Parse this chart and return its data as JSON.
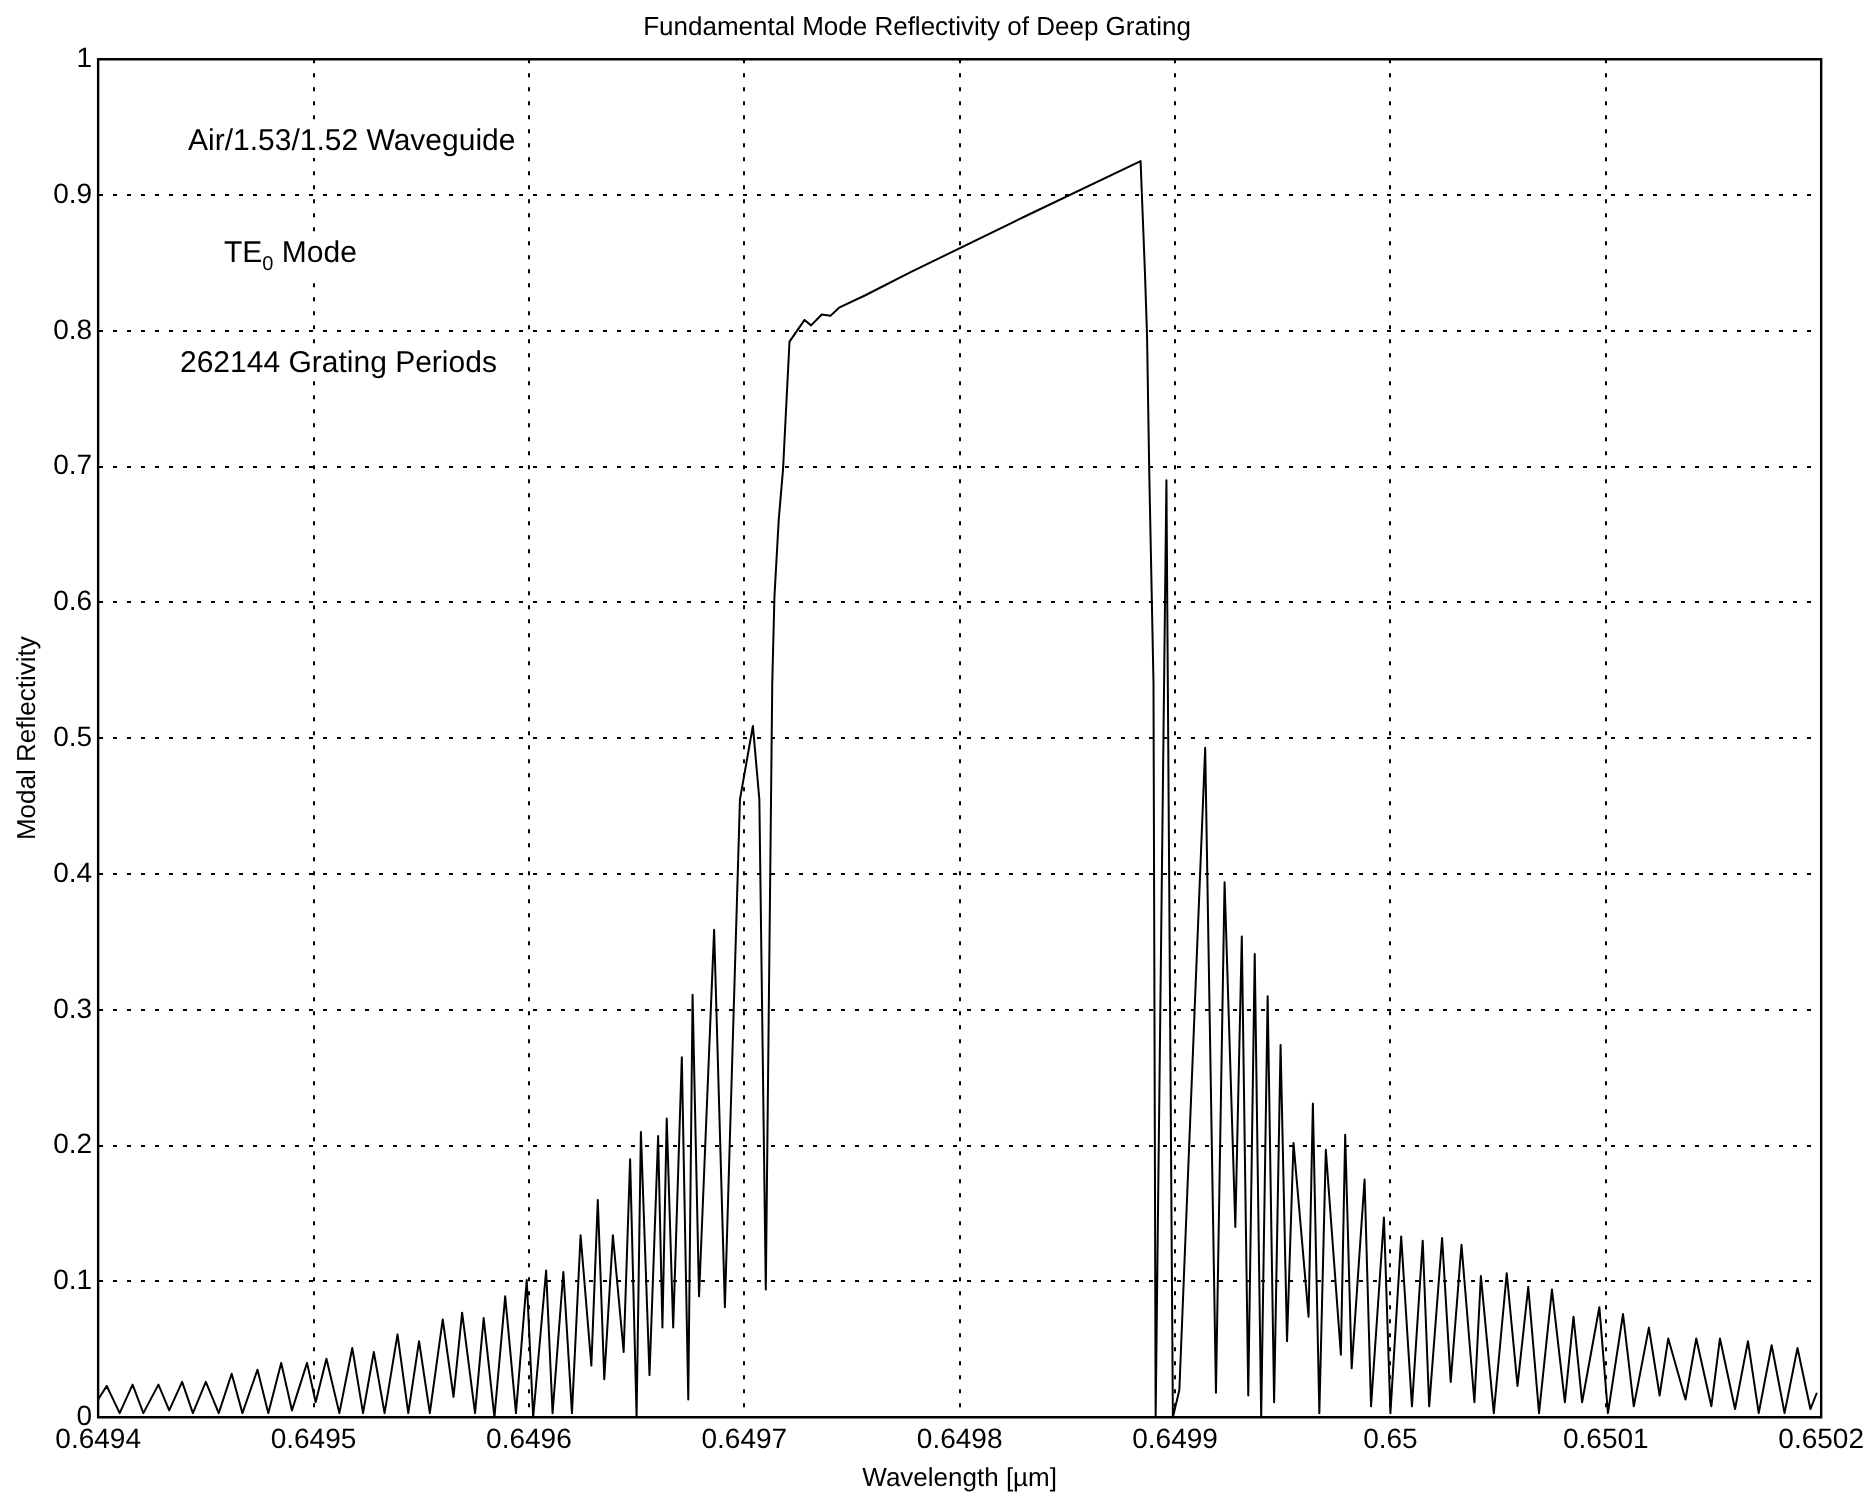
{
  "chart_data": {
    "type": "line",
    "title": "Fundamental Mode Reflectivity of Deep Grating",
    "xlabel": "Wavelength [µm]",
    "ylabel": "Modal Reflectivity",
    "annotations": [
      "Air/1.53/1.52 Waveguide",
      "TE$_{0}$ Mode",
      "262144 Grating Periods"
    ],
    "xlim": [
      0.6494,
      0.6502
    ],
    "xticks": [
      0.6494,
      0.6495,
      0.6496,
      0.6497,
      0.6498,
      0.6499,
      0.65,
      0.6501,
      0.6502
    ],
    "ylim": [
      0,
      1
    ],
    "yticks": [
      0,
      0.1,
      0.2,
      0.3,
      0.4,
      0.5,
      0.6,
      0.7,
      0.8,
      0.9,
      1
    ],
    "grid": true,
    "line_style": "solid",
    "marker": "none",
    "series": [
      {
        "color": "#000000",
        "x": [
          0.6494,
          0.649404,
          0.64941,
          0.649416,
          0.649421,
          0.649428,
          0.649433,
          0.649439,
          0.649444,
          0.64945,
          0.649456,
          0.649462,
          0.649467,
          0.649474,
          0.649479,
          0.649485,
          0.64949,
          0.649497,
          0.649501,
          0.649506,
          0.649512,
          0.649518,
          0.649523,
          0.649528,
          0.649533,
          0.649539,
          0.649544,
          0.649549,
          0.649554,
          0.64956,
          0.649565,
          0.649569,
          0.649575,
          0.649579,
          0.649584,
          0.649589,
          0.649594,
          0.649599,
          0.649602,
          0.649608,
          0.649611,
          0.649616,
          0.64962,
          0.649624,
          0.649629,
          0.649632,
          0.649635,
          0.649639,
          0.649644,
          0.649647,
          0.64965,
          0.649652,
          0.649656,
          0.64966,
          0.649662,
          0.649664,
          0.649667,
          0.649671,
          0.649674,
          0.649676,
          0.649679,
          0.649686,
          0.649691,
          0.649698,
          0.649704,
          0.649707,
          0.64971,
          0.649713,
          0.649714,
          0.649716,
          0.649718,
          0.649721,
          0.649728,
          0.649731,
          0.649736,
          0.64974,
          0.649744,
          0.649756,
          0.649777,
          0.64983,
          0.649884,
          0.649886,
          0.649887,
          0.649888,
          0.64989,
          0.649891,
          0.649896,
          0.649899,
          0.649902,
          0.649914,
          0.649919,
          0.649923,
          0.649928,
          0.649931,
          0.649934,
          0.649937,
          0.64994,
          0.649943,
          0.649946,
          0.649949,
          0.649952,
          0.649955,
          0.649962,
          0.649964,
          0.649967,
          0.64997,
          0.649977,
          0.649979,
          0.649982,
          0.649988,
          0.649991,
          0.649997,
          0.65,
          0.650005,
          0.65001,
          0.650015,
          0.650018,
          0.650024,
          0.650028,
          0.650033,
          0.650039,
          0.650042,
          0.650048,
          0.650054,
          0.650059,
          0.650064,
          0.650069,
          0.650075,
          0.650081,
          0.650085,
          0.650089,
          0.650097,
          0.650101,
          0.650108,
          0.650113,
          0.65012,
          0.650125,
          0.650129,
          0.650137,
          0.650142,
          0.650149,
          0.650153,
          0.65016,
          0.650166,
          0.650171,
          0.650177,
          0.650183,
          0.650189,
          0.650195,
          0.650198
        ],
        "values": [
          0.013,
          0.023,
          0.003,
          0.024,
          0.003,
          0.024,
          0.005,
          0.026,
          0.003,
          0.026,
          0.003,
          0.032,
          0.003,
          0.035,
          0.003,
          0.04,
          0.005,
          0.04,
          0.011,
          0.043,
          0.003,
          0.051,
          0.003,
          0.048,
          0.003,
          0.061,
          0.003,
          0.056,
          0.003,
          0.072,
          0.015,
          0.077,
          0.003,
          0.073,
          0,
          0.089,
          0.003,
          0.101,
          0,
          0.108,
          0.003,
          0.107,
          0.003,
          0.134,
          0.038,
          0.16,
          0.028,
          0.134,
          0.048,
          0.19,
          0,
          0.21,
          0.031,
          0.207,
          0.066,
          0.22,
          0.066,
          0.265,
          0.013,
          0.311,
          0.089,
          0.359,
          0.081,
          0.455,
          0.509,
          0.455,
          0.094,
          0.541,
          0.604,
          0.661,
          0.698,
          0.792,
          0.808,
          0.804,
          0.812,
          0.811,
          0.817,
          0.826,
          0.843,
          0.884,
          0.925,
          0.844,
          0.797,
          0.698,
          0.541,
          0,
          0.69,
          0,
          0.02,
          0.493,
          0.018,
          0.394,
          0.14,
          0.354,
          0.016,
          0.341,
          0,
          0.31,
          0.011,
          0.274,
          0.056,
          0.202,
          0.074,
          0.231,
          0.003,
          0.197,
          0.046,
          0.208,
          0.036,
          0.175,
          0.008,
          0.147,
          0.003,
          0.133,
          0.008,
          0.13,
          0.008,
          0.132,
          0.026,
          0.127,
          0.011,
          0.104,
          0.003,
          0.106,
          0.023,
          0.096,
          0.003,
          0.094,
          0.011,
          0.074,
          0.011,
          0.081,
          0.003,
          0.076,
          0.008,
          0.066,
          0.016,
          0.058,
          0.013,
          0.058,
          0.008,
          0.058,
          0.006,
          0.056,
          0.003,
          0.053,
          0.003,
          0.051,
          0.006,
          0.018
        ]
      }
    ]
  }
}
